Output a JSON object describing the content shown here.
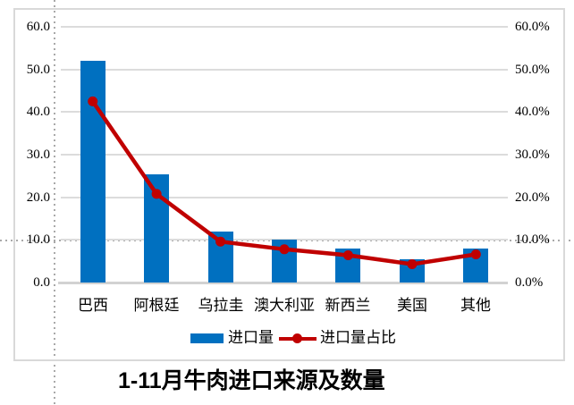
{
  "chart_data": {
    "type": "combo",
    "title": "1-11月牛肉进口来源及数量",
    "categories": [
      "巴西",
      "阿根廷",
      "乌拉圭",
      "澳大利亚",
      "新西兰",
      "美国",
      "其他"
    ],
    "series": [
      {
        "name": "进口量",
        "type": "bar",
        "axis": "left",
        "color": "#0070C0",
        "values": [
          52.0,
          25.4,
          12.0,
          10.0,
          8.0,
          5.5,
          8.0
        ]
      },
      {
        "name": "进口量占比",
        "type": "line",
        "axis": "right",
        "color": "#C00000",
        "values": [
          42.5,
          20.8,
          9.6,
          7.8,
          6.4,
          4.3,
          6.6
        ]
      }
    ],
    "left_axis": {
      "min": 0,
      "max": 60,
      "step": 10,
      "labels": [
        "0.0",
        "10.0",
        "20.0",
        "30.0",
        "40.0",
        "50.0",
        "60.0"
      ]
    },
    "right_axis": {
      "min": 0,
      "max": 60,
      "step": 10,
      "labels": [
        "0.0%",
        "10.0%",
        "20.0%",
        "30.0%",
        "40.0%",
        "50.0%",
        "60.0%"
      ]
    },
    "grid": true,
    "legend_position": "bottom",
    "gridline_color": "#DCDCDC",
    "border_color": "#D9D9D9"
  }
}
